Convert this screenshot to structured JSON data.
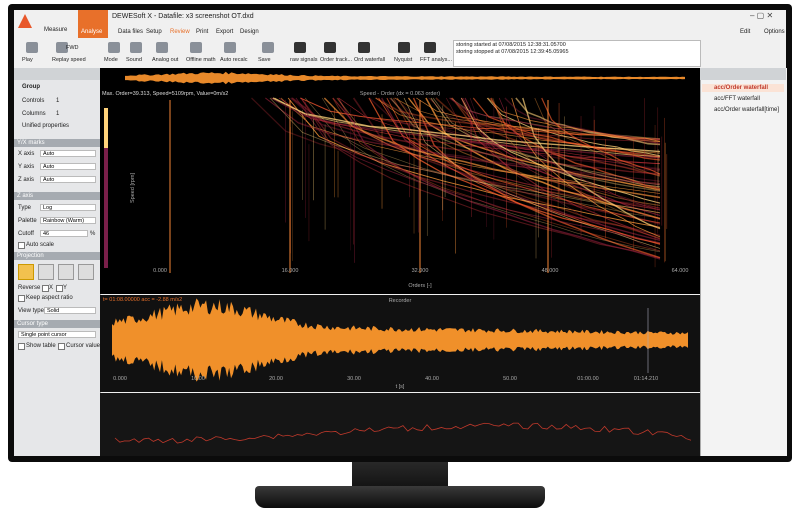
{
  "window": {
    "title": "DEWESoft X - Datafile: x3 screenshot OT.dxd",
    "modes": [
      "Measure",
      "Analyse"
    ],
    "right_buttons": [
      "Edit",
      "Options"
    ]
  },
  "menu": [
    "Data files",
    "Setup",
    "Review",
    "Print",
    "Export",
    "Design"
  ],
  "toolbar": {
    "fwd": "FWD",
    "items": [
      "Play",
      "Replay speed",
      "Mode",
      "Sound",
      "Analog out",
      "Offline math",
      "Auto recalc",
      "Save",
      "raw signals",
      "Order track...",
      "Ord waterfall",
      "Nyquist",
      "FFT analys..."
    ]
  },
  "log": [
    "storing started at 07/08/2015 12:38:31.05700",
    "storing stopped at 07/08/2015 12:39:45.05965"
  ],
  "left_panel": {
    "group": "Group",
    "controls": {
      "label": "Controls",
      "value": 1
    },
    "columns": {
      "label": "Columns",
      "value": 1
    },
    "unified": "Unified properties",
    "axes_header": "Y/X marks",
    "axes": [
      {
        "label": "X axis",
        "value": "Auto"
      },
      {
        "label": "Y axis",
        "value": "Auto"
      },
      {
        "label": "Z axis",
        "value": "Auto"
      }
    ],
    "z_header": "Z axis",
    "type": {
      "label": "Type",
      "value": "Log"
    },
    "palette": {
      "label": "Palette",
      "value": "Rainbow (Warm)"
    },
    "cutoff": {
      "label": "Cutoff",
      "value": 46,
      "unit": "%"
    },
    "auto_scale": "Auto scale",
    "projection": "Projection",
    "reverse": {
      "label": "Reverse",
      "x": "X",
      "y": "Y"
    },
    "keep_aspect": "Keep aspect ratio",
    "view_type": {
      "label": "View type",
      "value": "Solid"
    },
    "cursor_header": "Cursor type",
    "cursor": "Single point cursor",
    "show_table": "Show table",
    "cursor_values": "Cursor values"
  },
  "right_panel": {
    "items": [
      "acc/Order waterfall",
      "acc/FFT waterfall",
      "acc/Order waterfall[time]"
    ]
  },
  "waterfall": {
    "info": "Max. Order=39.313, Speed=5109rpm, Value=0m/s2",
    "title": "Speed - Order (dx = 0.063 order)",
    "x_ticks": [
      "0.000",
      "16.000",
      "32.000",
      "48.000",
      "64.000"
    ],
    "x_label": "Orders [-]",
    "y_label": "Speed [rpm]"
  },
  "recorder": {
    "title": "Recorder",
    "cursor": "t= 01:08.00000 acc = -2.88 m/s2",
    "x_ticks": [
      "0.000",
      "10.00",
      "20.00",
      "30.00",
      "40.00",
      "50.00",
      "01:00.00",
      "01:14.210"
    ],
    "x_label": "t [s]"
  }
}
